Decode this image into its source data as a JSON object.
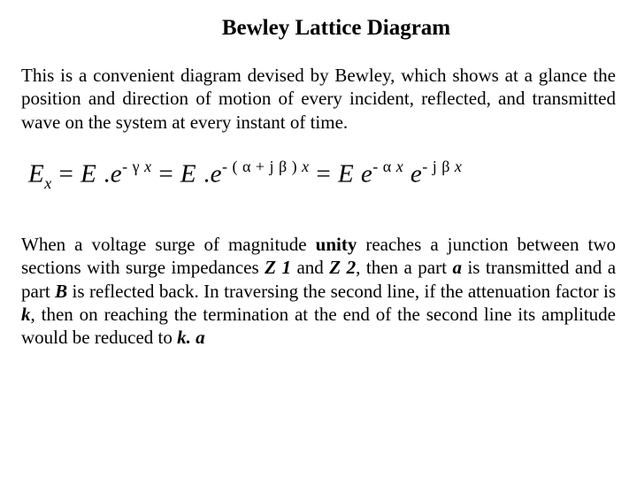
{
  "title": "Bewley Lattice Diagram",
  "para1": "This is a convenient diagram devised by Bewley, which shows at a glance the position and direction of motion of every incident, reflected, and transmitted wave on the system at every instant of time.",
  "eq": {
    "Ex": "E",
    "sub_x": "x",
    "eq1": "=",
    "E1": "E",
    "dot1": ".",
    "e1": "e",
    "exp1_a": "- γ",
    "exp1_b": "x",
    "eq2": "=",
    "E2": "E",
    "dot2": ".",
    "e2": "e",
    "exp2_a": "- ( α + j β )",
    "exp2_b": "x",
    "eq3": "=",
    "E3": "E",
    "e3": "e",
    "exp3_a": "- α",
    "exp3_b": "x",
    "e4": "e",
    "exp4_a": "- j β",
    "exp4_b": "x"
  },
  "p2": {
    "t1": "When a voltage surge of magnitude ",
    "unity": "unity",
    "t2": " reaches a junction between two sections with surge impedances ",
    "z1": "Z 1",
    "t3": " and ",
    "z2": "Z 2",
    "t4": ", then a part ",
    "a": "a",
    "t5": " is transmitted and a part ",
    "B": "B",
    "t6": " is reflected back. In traversing the second line, if the attenuation factor is ",
    "k": "k",
    "t7": ", then on reaching the termination at the end of the second line its amplitude would be reduced to ",
    "ka": "k. a"
  }
}
